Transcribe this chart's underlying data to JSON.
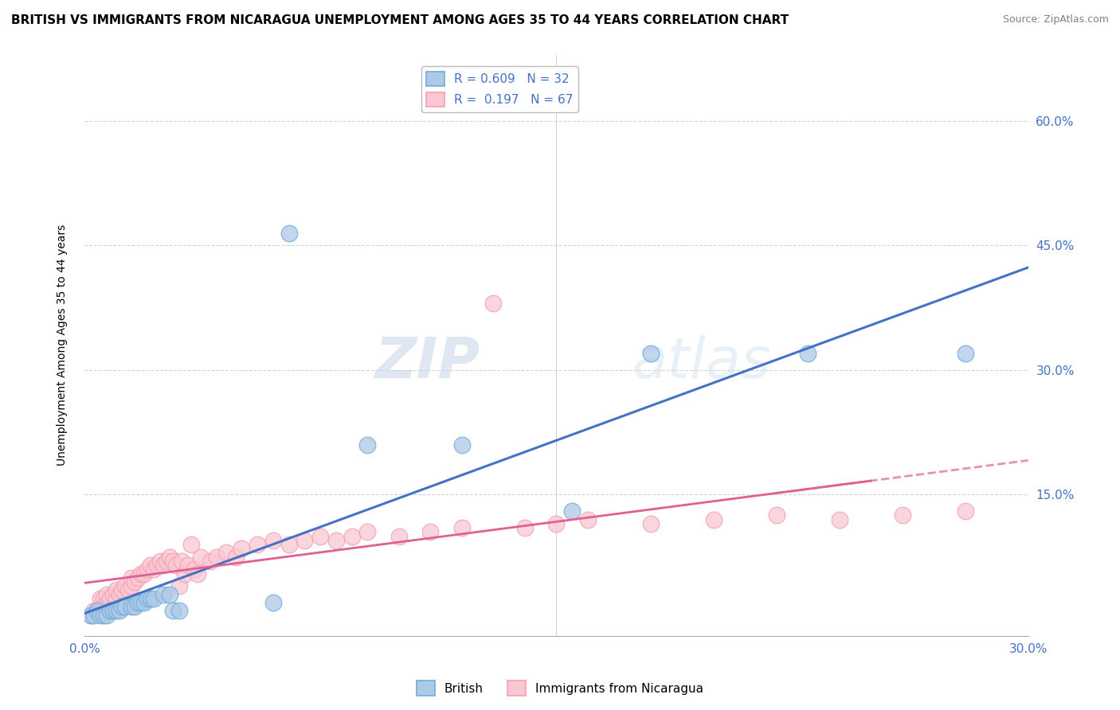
{
  "title": "BRITISH VS IMMIGRANTS FROM NICARAGUA UNEMPLOYMENT AMONG AGES 35 TO 44 YEARS CORRELATION CHART",
  "source": "Source: ZipAtlas.com",
  "xlabel": "",
  "ylabel": "Unemployment Among Ages 35 to 44 years",
  "xlim": [
    0.0,
    0.3
  ],
  "ylim": [
    -0.02,
    0.68
  ],
  "xticks": [
    0.0,
    0.05,
    0.1,
    0.15,
    0.2,
    0.25,
    0.3
  ],
  "xticklabels": [
    "0.0%",
    "",
    "",
    "",
    "",
    "",
    "30.0%"
  ],
  "ytick_positions": [
    0.15,
    0.3,
    0.45,
    0.6
  ],
  "yticklabels": [
    "15.0%",
    "30.0%",
    "45.0%",
    "60.0%"
  ],
  "british_R": 0.609,
  "british_N": 32,
  "nicaragua_R": 0.197,
  "nicaragua_N": 67,
  "british_color": "#6baed6",
  "british_fill": "#aec8e8",
  "nicaragua_color": "#f4a0b0",
  "nicaragua_fill": "#f9c8d4",
  "regression_blue": "#4472c4",
  "regression_pink": "#e06090",
  "watermark_zip": "ZIP",
  "watermark_atlas": "atlas",
  "title_fontsize": 11,
  "axis_fontsize": 10,
  "tick_fontsize": 11,
  "legend_fontsize": 11,
  "source_fontsize": 9,
  "bg_color": "#ffffff",
  "grid_color": "#c8c8c8",
  "british_x": [
    0.002,
    0.003,
    0.004,
    0.005,
    0.006,
    0.007,
    0.008,
    0.009,
    0.01,
    0.011,
    0.012,
    0.013,
    0.015,
    0.016,
    0.017,
    0.018,
    0.019,
    0.02,
    0.021,
    0.022,
    0.025,
    0.027,
    0.028,
    0.03,
    0.06,
    0.065,
    0.09,
    0.12,
    0.155,
    0.18,
    0.23,
    0.28
  ],
  "british_y": [
    0.005,
    0.005,
    0.01,
    0.005,
    0.005,
    0.005,
    0.01,
    0.01,
    0.01,
    0.01,
    0.015,
    0.015,
    0.015,
    0.015,
    0.02,
    0.02,
    0.02,
    0.025,
    0.025,
    0.025,
    0.03,
    0.03,
    0.01,
    0.01,
    0.02,
    0.465,
    0.21,
    0.21,
    0.13,
    0.32,
    0.32,
    0.32
  ],
  "nicaragua_x": [
    0.002,
    0.003,
    0.004,
    0.005,
    0.005,
    0.006,
    0.006,
    0.007,
    0.007,
    0.008,
    0.009,
    0.01,
    0.01,
    0.011,
    0.012,
    0.013,
    0.014,
    0.015,
    0.015,
    0.016,
    0.017,
    0.018,
    0.019,
    0.02,
    0.021,
    0.022,
    0.023,
    0.024,
    0.025,
    0.026,
    0.027,
    0.028,
    0.029,
    0.03,
    0.031,
    0.032,
    0.033,
    0.034,
    0.035,
    0.036,
    0.037,
    0.04,
    0.042,
    0.045,
    0.048,
    0.05,
    0.055,
    0.06,
    0.065,
    0.07,
    0.075,
    0.08,
    0.085,
    0.09,
    0.1,
    0.11,
    0.12,
    0.13,
    0.14,
    0.15,
    0.16,
    0.18,
    0.2,
    0.22,
    0.24,
    0.26,
    0.28
  ],
  "nicaragua_y": [
    0.005,
    0.01,
    0.01,
    0.015,
    0.025,
    0.015,
    0.025,
    0.02,
    0.03,
    0.025,
    0.03,
    0.025,
    0.035,
    0.03,
    0.035,
    0.04,
    0.035,
    0.04,
    0.05,
    0.045,
    0.05,
    0.055,
    0.055,
    0.06,
    0.065,
    0.06,
    0.065,
    0.07,
    0.065,
    0.07,
    0.075,
    0.07,
    0.065,
    0.04,
    0.07,
    0.055,
    0.065,
    0.09,
    0.06,
    0.055,
    0.075,
    0.07,
    0.075,
    0.08,
    0.075,
    0.085,
    0.09,
    0.095,
    0.09,
    0.095,
    0.1,
    0.095,
    0.1,
    0.105,
    0.1,
    0.105,
    0.11,
    0.38,
    0.11,
    0.115,
    0.12,
    0.115,
    0.12,
    0.125,
    0.12,
    0.125,
    0.13
  ]
}
